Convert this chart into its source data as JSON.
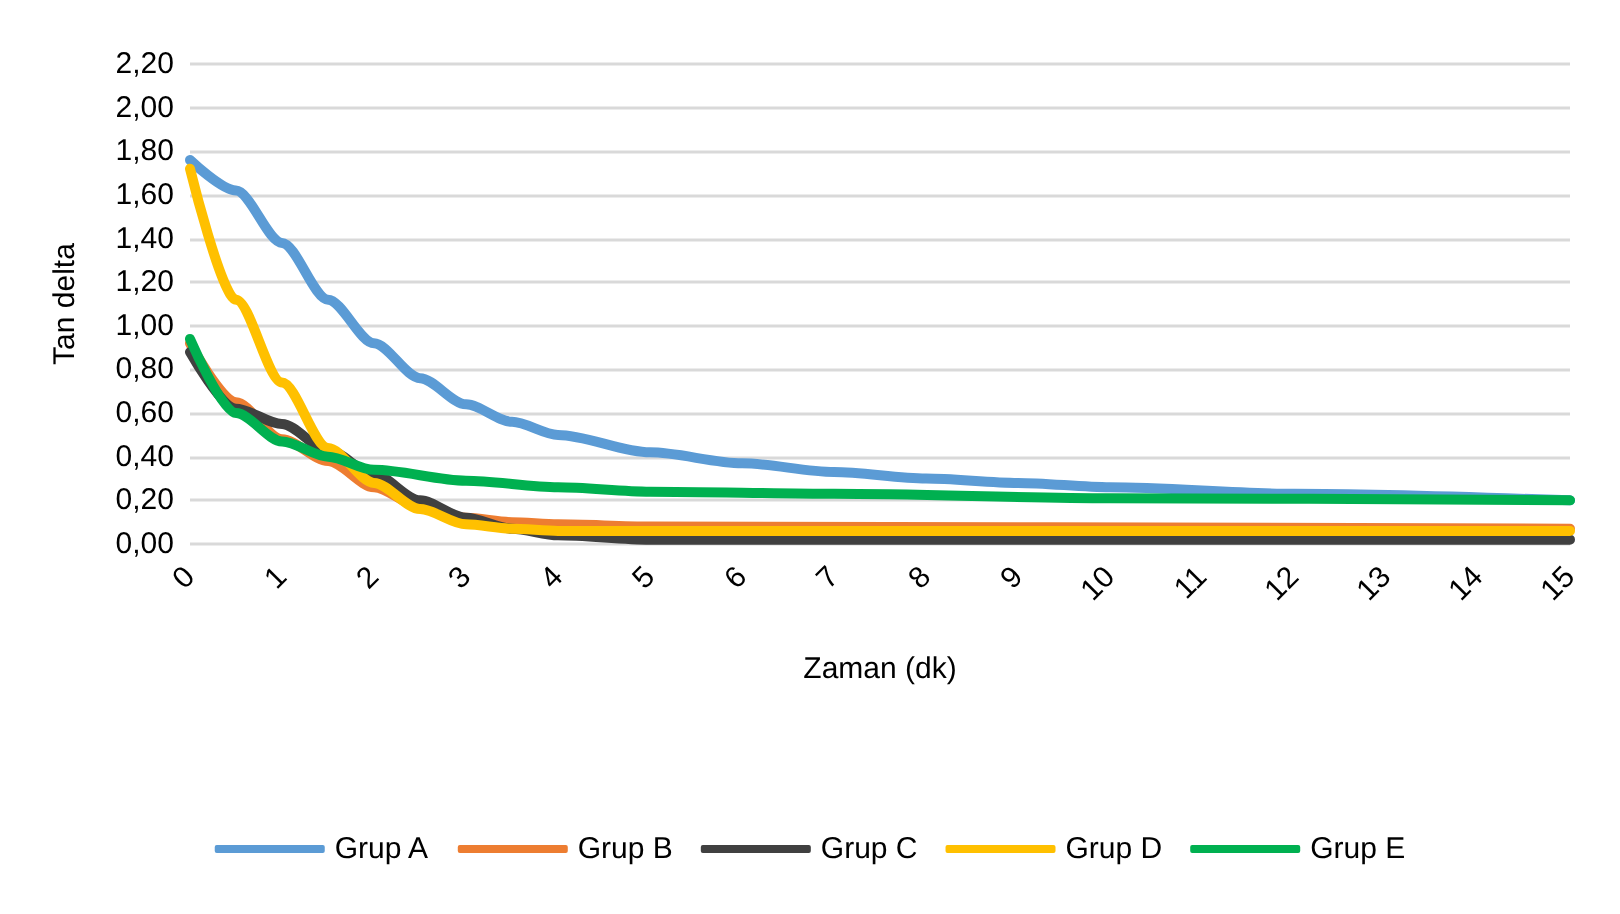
{
  "chart_data": {
    "type": "line",
    "xlabel": "Zaman (dk)",
    "ylabel": "Tan delta",
    "xlim": [
      0,
      15
    ],
    "xticks": [
      0,
      1,
      2,
      3,
      4,
      5,
      6,
      7,
      8,
      9,
      10,
      11,
      12,
      13,
      14,
      15
    ],
    "ylim": [
      0,
      2.2
    ],
    "yticks": [
      {
        "value": 0,
        "label": "0,00"
      },
      {
        "value": 0.2,
        "label": "0,20"
      },
      {
        "value": 0.4,
        "label": "0,40"
      },
      {
        "value": 0.6,
        "label": "0,60"
      },
      {
        "value": 0.8,
        "label": "0,80"
      },
      {
        "value": 1,
        "label": "1,00"
      },
      {
        "value": 1.2,
        "label": "1,20"
      },
      {
        "value": 1.4,
        "label": "1,40"
      },
      {
        "value": 1.6,
        "label": "1,60"
      },
      {
        "value": 1.8,
        "label": "1,80"
      },
      {
        "value": 2,
        "label": "2,00"
      },
      {
        "value": 2.2,
        "label": "2,20"
      }
    ],
    "grid": "y",
    "legend": "bottom",
    "marker": "none",
    "line_style": "solid",
    "series": [
      {
        "name": "Grup A",
        "color": "#5b9bd5",
        "x": [
          0,
          0.5,
          1,
          1.5,
          2,
          2.5,
          3,
          3.5,
          4,
          5,
          6,
          7,
          8,
          9,
          10,
          12,
          15
        ],
        "values": [
          1.76,
          1.62,
          1.38,
          1.12,
          0.92,
          0.76,
          0.64,
          0.56,
          0.5,
          0.42,
          0.37,
          0.33,
          0.3,
          0.28,
          0.26,
          0.23,
          0.2
        ]
      },
      {
        "name": "Grup B",
        "color": "#ed7d31",
        "x": [
          0,
          0.5,
          1,
          1.5,
          2,
          2.5,
          3,
          3.5,
          4,
          5,
          15
        ],
        "values": [
          0.92,
          0.65,
          0.48,
          0.38,
          0.26,
          0.17,
          0.12,
          0.1,
          0.09,
          0.08,
          0.07
        ]
      },
      {
        "name": "Grup C",
        "color": "#404040",
        "x": [
          0,
          0.5,
          1,
          1.5,
          2,
          2.5,
          3,
          3.5,
          4,
          5,
          15
        ],
        "values": [
          0.88,
          0.62,
          0.55,
          0.43,
          0.32,
          0.2,
          0.12,
          0.07,
          0.04,
          0.02,
          0.02
        ]
      },
      {
        "name": "Grup D",
        "color": "#ffc000",
        "x": [
          0,
          0.5,
          1,
          1.5,
          2,
          2.5,
          3,
          3.5,
          4,
          15
        ],
        "values": [
          1.72,
          1.12,
          0.74,
          0.44,
          0.28,
          0.16,
          0.09,
          0.07,
          0.06,
          0.06
        ]
      },
      {
        "name": "Grup E",
        "color": "#00b050",
        "x": [
          0,
          0.5,
          1,
          1.5,
          2,
          3,
          4,
          5,
          7,
          10,
          15
        ],
        "values": [
          0.94,
          0.6,
          0.47,
          0.4,
          0.34,
          0.29,
          0.26,
          0.24,
          0.23,
          0.21,
          0.2
        ]
      }
    ]
  }
}
